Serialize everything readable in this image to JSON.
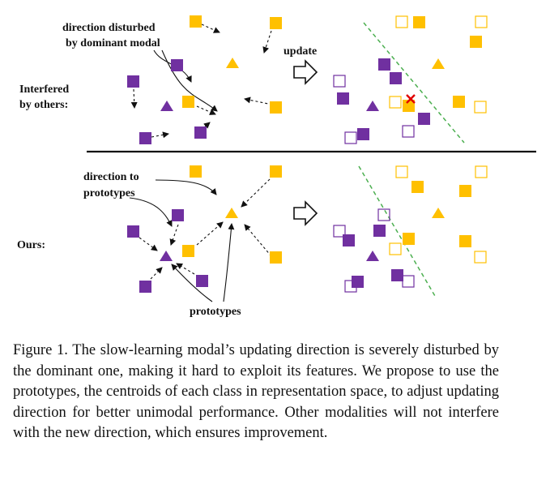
{
  "figure": {
    "top_panel": {
      "row_label_line1": "Interfered",
      "row_label_line2": "by others:",
      "annotation_line1": "direction disturbed",
      "annotation_line2": "by dominant modal",
      "arrow_label": "update"
    },
    "bottom_panel": {
      "row_label": "Ours:",
      "annotation_line1": "direction to",
      "annotation_line2": "prototypes",
      "prototypes_label": "prototypes"
    },
    "colors": {
      "class_a": "#7030A0",
      "class_b": "#FFC000",
      "decision_boundary": "#4CAF50",
      "error_mark": "#E00000"
    }
  },
  "caption": {
    "text": "Figure 1. The slow-learning modal’s updating direction is severely disturbed by the dominant one, making it hard to exploit its features. We propose to use the prototypes, the centroids of each class in representation space, to adjust updating direction for better unimodal performance. Other modalities will not interfere with the new direction, which ensures improvement."
  }
}
